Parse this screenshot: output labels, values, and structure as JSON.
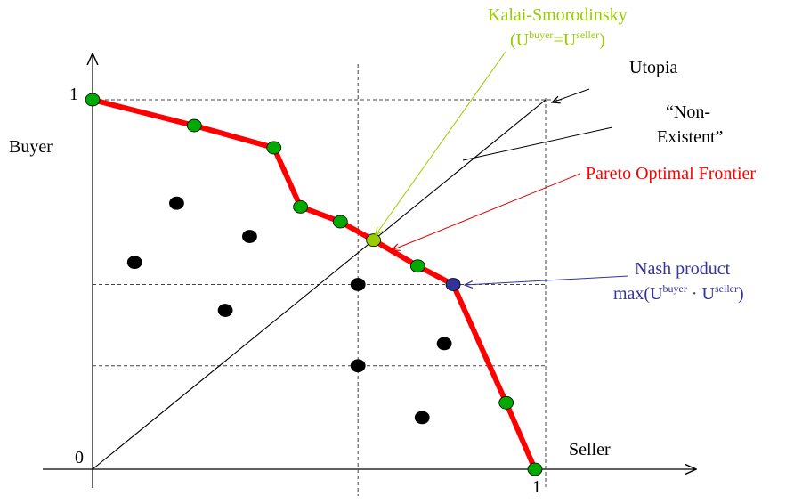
{
  "labels": {
    "y_axis": "Buyer",
    "x_axis": "Seller",
    "origin": "0",
    "y_one": "1",
    "x_one": "1",
    "utopia": "Utopia",
    "non_existent_line1": "“Non-",
    "non_existent_line2": "Existent”",
    "pareto": "Pareto Optimal Frontier",
    "kalai_title": "Kalai-Smorodinsky",
    "kalai_open": "(U",
    "kalai_sup1": "buyer",
    "kalai_eq": "=U",
    "kalai_sup2": "seller",
    "kalai_close": ")",
    "nash_title": "Nash product",
    "nash_pre": "max(U",
    "nash_sup1": "buyer",
    "nash_dot": " · U",
    "nash_sup2": "seller",
    "nash_close": ")"
  },
  "colors": {
    "frontier": "#ff0000",
    "frontier_point": "#00aa00",
    "kalai_point": "#99cc00",
    "kalai_text": "#99cc00",
    "nash_point": "#333399",
    "nash_text": "#333399",
    "pareto_text": "#ff0000",
    "interior_point": "#000000"
  },
  "axes": {
    "x_range": [
      0,
      1
    ],
    "y_range": [
      0,
      1
    ],
    "reference_x": 0.6,
    "reference_y": [
      0.5,
      0.28
    ]
  },
  "frontier": [
    [
      0.0,
      1.0
    ],
    [
      0.23,
      0.93
    ],
    [
      0.41,
      0.87
    ],
    [
      0.47,
      0.71
    ],
    [
      0.56,
      0.67
    ],
    [
      0.635,
      0.62
    ],
    [
      0.735,
      0.55
    ],
    [
      0.815,
      0.5
    ],
    [
      0.935,
      0.18
    ],
    [
      1.0,
      0.0
    ]
  ],
  "kalai_point": [
    0.635,
    0.62
  ],
  "nash_point": [
    0.815,
    0.5
  ],
  "interior_points": [
    [
      0.19,
      0.72
    ],
    [
      0.355,
      0.63
    ],
    [
      0.095,
      0.56
    ],
    [
      0.3,
      0.43
    ],
    [
      0.6,
      0.5
    ],
    [
      0.6,
      0.28
    ],
    [
      0.795,
      0.34
    ],
    [
      0.745,
      0.14
    ]
  ]
}
